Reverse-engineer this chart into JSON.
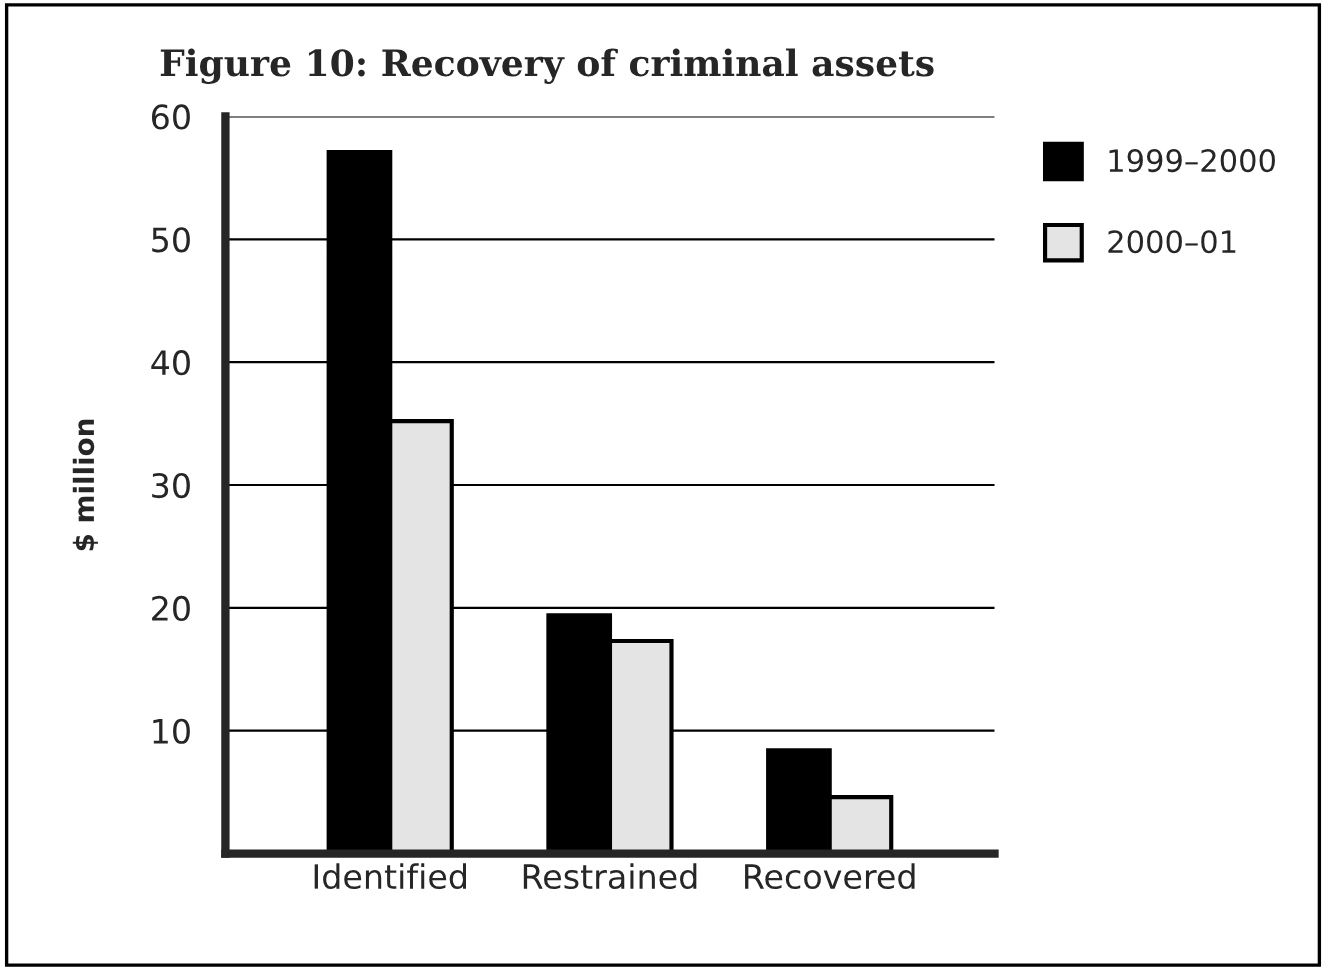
{
  "chart_data": {
    "type": "bar",
    "title": "Figure 10: Recovery of criminal assets",
    "ylabel": "$ million",
    "categories": [
      "Identified",
      "Restrained",
      "Recovered"
    ],
    "series": [
      {
        "name": "1999–2000",
        "color": "#000000",
        "values": [
          57.1,
          19.4,
          8.4
        ]
      },
      {
        "name": "2000–01",
        "color": "#e4e4e4",
        "values": [
          35.2,
          17.3,
          4.6
        ]
      }
    ],
    "ylim": [
      0,
      60
    ],
    "yticks": [
      10,
      20,
      30,
      40,
      50,
      60
    ],
    "grid": "y",
    "legend": "top right"
  }
}
